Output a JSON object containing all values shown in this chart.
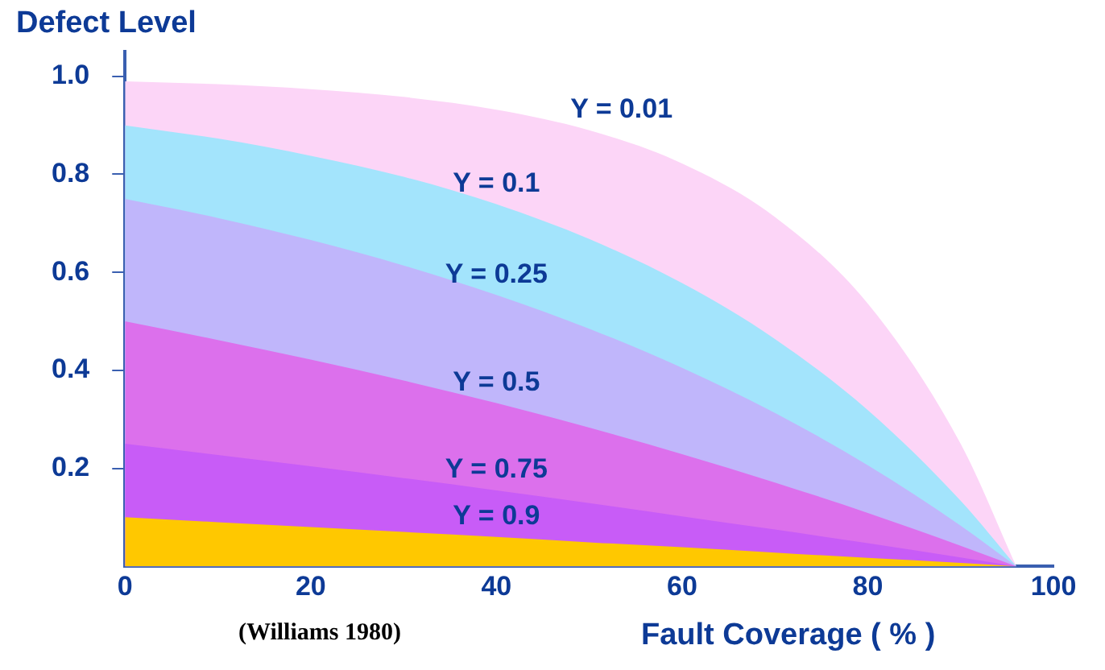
{
  "chart_data": {
    "type": "area",
    "ylabel": "Defect Level",
    "xlabel": "Fault Coverage ( % )",
    "annotations": [
      "(Williams 1980)"
    ],
    "x": [
      0,
      10,
      20,
      30,
      40,
      50,
      60,
      70,
      80,
      90,
      96
    ],
    "series": [
      {
        "name": "Y = 0.01",
        "color": "#fcd5f7",
        "values": [
          0.99,
          0.984,
          0.974,
          0.958,
          0.932,
          0.89,
          0.822,
          0.713,
          0.536,
          0.25,
          0
        ]
      },
      {
        "name": "Y = 0.1",
        "color": "#a3e4fc",
        "values": [
          0.9,
          0.873,
          0.838,
          0.795,
          0.739,
          0.668,
          0.578,
          0.464,
          0.319,
          0.134,
          0
        ]
      },
      {
        "name": "Y = 0.25",
        "color": "#c0b6fb",
        "values": [
          0.75,
          0.711,
          0.666,
          0.614,
          0.554,
          0.485,
          0.405,
          0.313,
          0.206,
          0.083,
          0
        ]
      },
      {
        "name": "Y = 0.5",
        "color": "#dc70ec",
        "values": [
          0.5,
          0.462,
          0.422,
          0.379,
          0.333,
          0.283,
          0.229,
          0.171,
          0.109,
          0.042,
          0
        ]
      },
      {
        "name": "Y = 0.75",
        "color": "#c85cf7",
        "values": [
          0.25,
          0.227,
          0.204,
          0.18,
          0.155,
          0.129,
          0.102,
          0.075,
          0.047,
          0.018,
          0
        ]
      },
      {
        "name": "Y = 0.9",
        "color": "#ffc800",
        "values": [
          0.1,
          0.09,
          0.08,
          0.07,
          0.06,
          0.049,
          0.039,
          0.028,
          0.017,
          0.007,
          0
        ]
      }
    ],
    "xlim": [
      0,
      100
    ],
    "xticks": [
      0,
      20,
      40,
      60,
      80,
      100
    ],
    "ylim": [
      0,
      1.05
    ],
    "yticks": [
      {
        "value": 0.2,
        "label": "0.2"
      },
      {
        "value": 0.4,
        "label": "0.4"
      },
      {
        "value": 0.6,
        "label": "0.6"
      },
      {
        "value": 0.8,
        "label": "0.8"
      },
      {
        "value": 1.0,
        "label": "1.0"
      }
    ],
    "grid": false,
    "legend": false
  }
}
